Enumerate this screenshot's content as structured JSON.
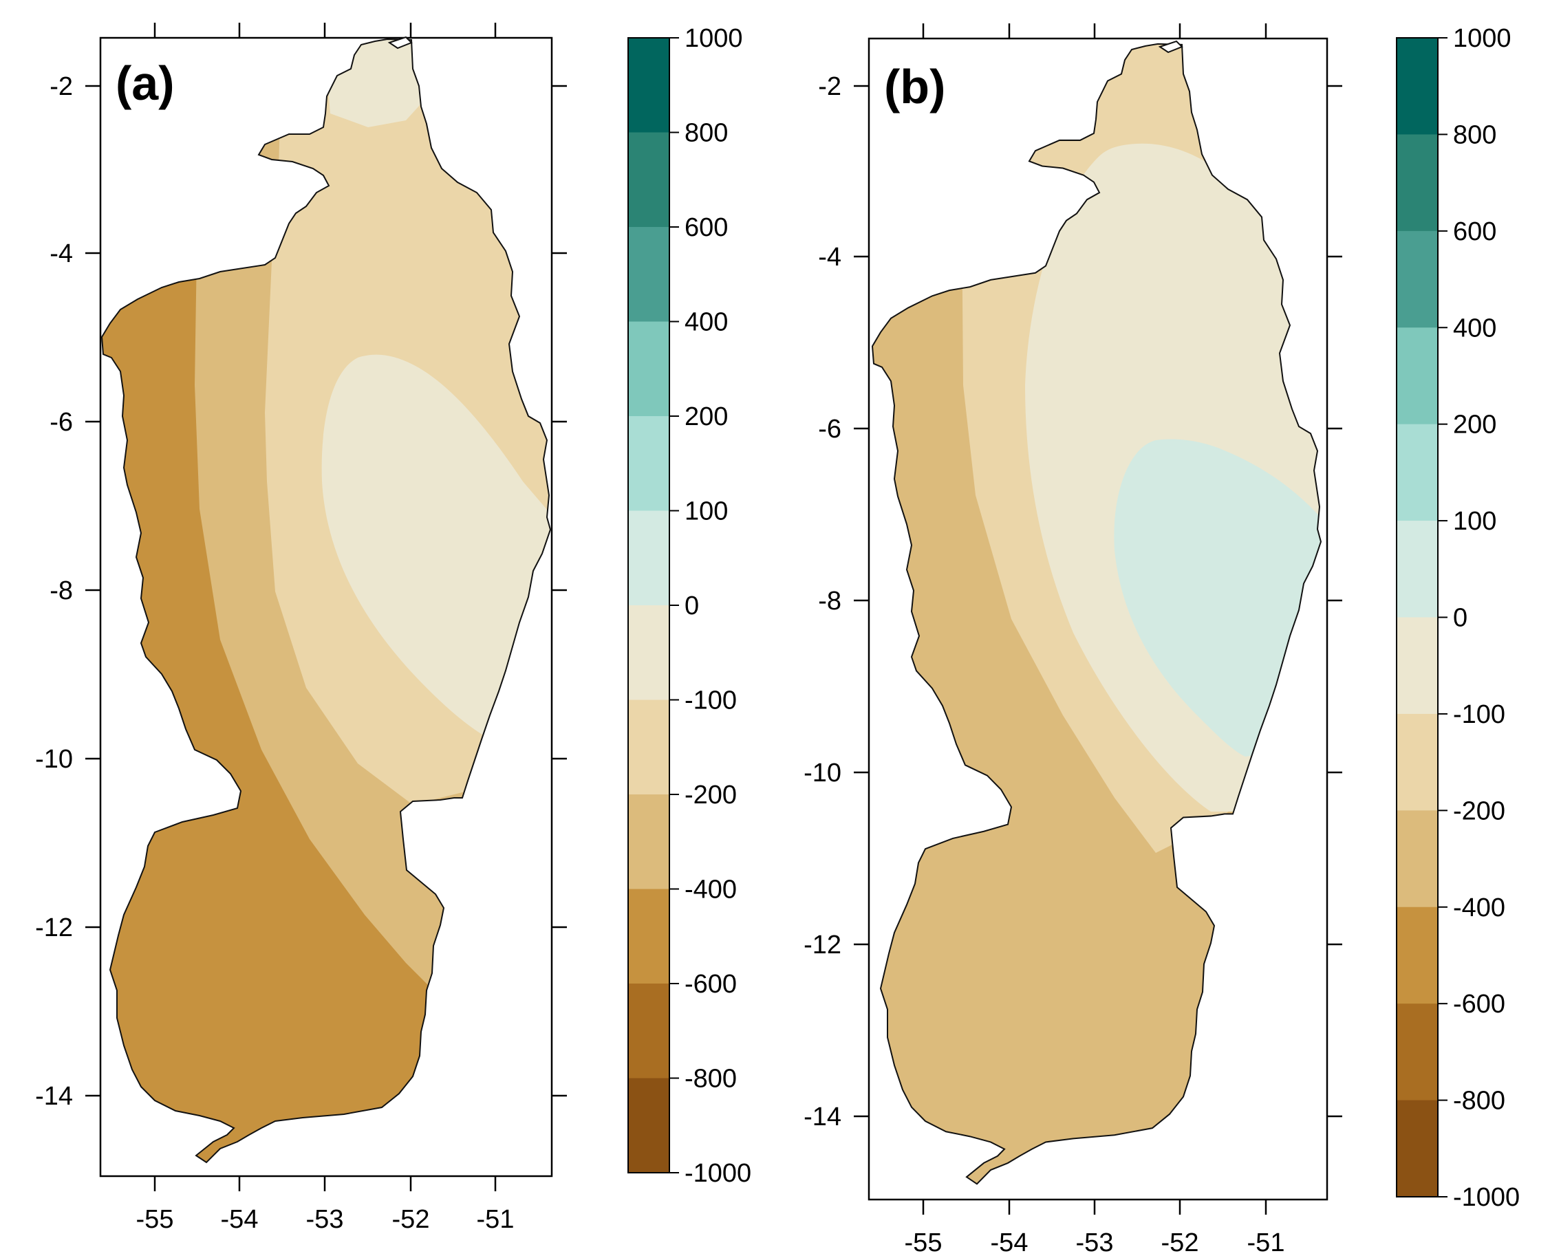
{
  "figure": {
    "panels": [
      {
        "id": "a",
        "label": "(a)",
        "x_ticks": [
          "-55",
          "-54",
          "-53",
          "-52",
          "-51"
        ],
        "y_ticks": [
          "-2",
          "-4",
          "-6",
          "-8",
          "-10",
          "-12",
          "-14"
        ],
        "colorbar_ticks": [
          "1000",
          "800",
          "600",
          "400",
          "200",
          "100",
          "0",
          "-100",
          "-200",
          "-400",
          "-600",
          "-800",
          "-1000"
        ]
      },
      {
        "id": "b",
        "label": "(b)",
        "x_ticks": [
          "-55",
          "-54",
          "-53",
          "-52",
          "-51"
        ],
        "y_ticks": [
          "-2",
          "-4",
          "-6",
          "-8",
          "-10",
          "-12",
          "-14"
        ],
        "colorbar_ticks": [
          "1000",
          "800",
          "600",
          "400",
          "200",
          "100",
          "0",
          "-100",
          "-200",
          "-400",
          "-600",
          "-800",
          "-1000"
        ]
      }
    ],
    "colorbar_colors": [
      "#01665e",
      "#2b8474",
      "#4a9e91",
      "#7fc8bb",
      "#a9ddd4",
      "#d3eae2",
      "#ece7d0",
      "#ebd6a9",
      "#dcbb7c",
      "#c6923f",
      "#a96e22",
      "#8b5214"
    ],
    "zone_colors": {
      "pos_0_100": "#d3eae2",
      "neg_0_100": "#ece7d0",
      "neg_100_200": "#ebd6a9",
      "neg_200_400": "#dcbb7c",
      "neg_400_600": "#c6923f"
    }
  }
}
